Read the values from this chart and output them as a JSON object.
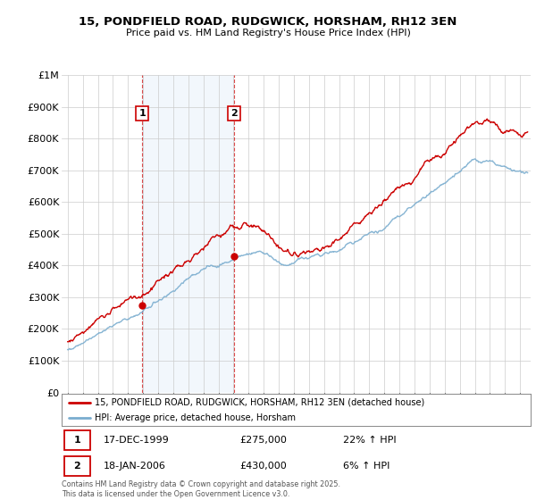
{
  "title": "15, PONDFIELD ROAD, RUDGWICK, HORSHAM, RH12 3EN",
  "subtitle": "Price paid vs. HM Land Registry's House Price Index (HPI)",
  "legend_label_red": "15, PONDFIELD ROAD, RUDGWICK, HORSHAM, RH12 3EN (detached house)",
  "legend_label_blue": "HPI: Average price, detached house, Horsham",
  "sale1_date": "17-DEC-1999",
  "sale1_price": "£275,000",
  "sale1_hpi": "22% ↑ HPI",
  "sale2_date": "18-JAN-2006",
  "sale2_price": "£430,000",
  "sale2_hpi": "6% ↑ HPI",
  "footer": "Contains HM Land Registry data © Crown copyright and database right 2025.\nThis data is licensed under the Open Government Licence v3.0.",
  "red_color": "#cc0000",
  "blue_color": "#7aadcf",
  "background_color": "#ffffff",
  "grid_color": "#cccccc",
  "ylim_min": 0,
  "ylim_max": 1000000,
  "sale1_year": 1999.96,
  "sale1_value": 275000,
  "sale2_year": 2006.05,
  "sale2_value": 430000
}
